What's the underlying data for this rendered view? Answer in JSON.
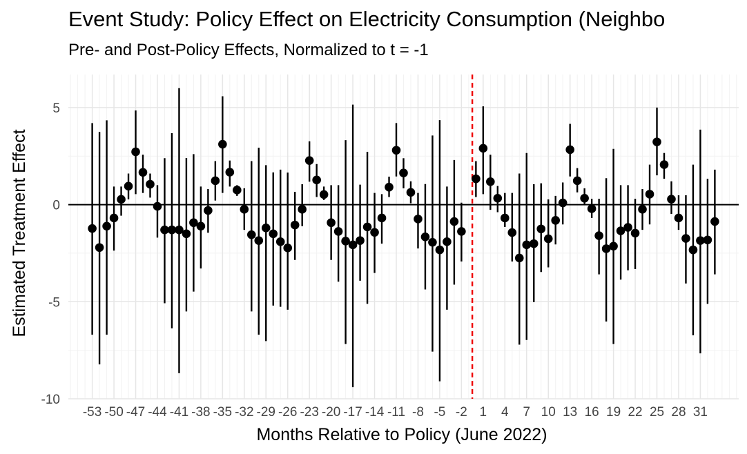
{
  "chart_data": {
    "type": "scatter",
    "title": "Event Study: Policy Effect on Electricity Consumption (Neighbo",
    "subtitle": "Pre- and Post-Policy Effects, Normalized to t = -1",
    "xlabel": "Months Relative to Policy (June 2022)",
    "ylabel": "Estimated Treatment Effect",
    "xlim": [
      -56.3,
      36.3
    ],
    "ylim": [
      -10,
      6.7
    ],
    "yticks": [
      -10,
      -5,
      0,
      5
    ],
    "xticks": [
      -53,
      -50,
      -47,
      -44,
      -41,
      -38,
      -35,
      -32,
      -29,
      -26,
      -23,
      -20,
      -17,
      -14,
      -11,
      -8,
      -5,
      -2,
      1,
      4,
      7,
      10,
      13,
      16,
      19,
      22,
      25,
      28,
      31
    ],
    "reference_line": {
      "y": 0,
      "color": "#000000"
    },
    "policy_line": {
      "x": -0.5,
      "color": "#ee0000",
      "style": "dashed"
    },
    "grid": true,
    "legend": "none",
    "point_color": "#000000",
    "series": [
      {
        "x": [
          -53,
          -52,
          -51,
          -50,
          -49,
          -48,
          -47,
          -46,
          -45,
          -44,
          -43,
          -42,
          -41,
          -40,
          -39,
          -38,
          -37,
          -36,
          -35,
          -34,
          -33,
          -32,
          -31,
          -30,
          -29,
          -28,
          -27,
          -26,
          -25,
          -24,
          -23,
          -22,
          -21,
          -20,
          -19,
          -18,
          -17,
          -16,
          -15,
          -14,
          -13,
          -12,
          -11,
          -10,
          -9,
          -8,
          -7,
          -6,
          -5,
          -4,
          -3,
          -2,
          0,
          1,
          2,
          3,
          4,
          5,
          6,
          7,
          8,
          9,
          10,
          11,
          12,
          13,
          14,
          15,
          16,
          17,
          18,
          19,
          20,
          21,
          22,
          23,
          24,
          25,
          26,
          27,
          28,
          29,
          30,
          31,
          32,
          33
        ],
        "y": [
          -1.23,
          -2.21,
          -1.11,
          -0.69,
          0.27,
          0.95,
          2.72,
          1.66,
          1.05,
          -0.09,
          -1.3,
          -1.3,
          -1.3,
          -1.5,
          -0.93,
          -1.11,
          -0.3,
          1.23,
          3.11,
          1.67,
          0.75,
          -0.24,
          -1.55,
          -1.85,
          -1.2,
          -1.5,
          -1.91,
          -2.23,
          -1.05,
          -0.24,
          2.27,
          1.27,
          0.52,
          -0.93,
          -1.38,
          -1.88,
          -2.07,
          -1.85,
          -1.15,
          -1.43,
          -0.69,
          0.9,
          2.8,
          1.63,
          0.63,
          -0.74,
          -1.66,
          -1.94,
          -2.33,
          -1.91,
          -0.87,
          -1.38,
          1.33,
          2.9,
          1.18,
          0.33,
          -0.69,
          -1.44,
          -2.75,
          -2.07,
          -2.01,
          -1.25,
          -1.76,
          -0.81,
          0.09,
          2.83,
          1.23,
          0.33,
          -0.21,
          -1.6,
          -2.27,
          -2.14,
          -1.35,
          -1.17,
          -1.47,
          -0.24,
          0.54,
          3.23,
          2.06,
          0.28,
          -0.69,
          -1.74,
          -2.33,
          -1.85,
          -1.82,
          -0.87
        ],
        "lower": [
          -6.7,
          -8.23,
          -6.7,
          -2.37,
          -0.57,
          0.27,
          0.54,
          0.6,
          0.36,
          -1.7,
          -5.08,
          -6.37,
          -8.68,
          -5.5,
          -4.48,
          -3.29,
          -1.45,
          0.21,
          0.6,
          0.93,
          0.45,
          -1.3,
          -5.5,
          -6.7,
          -7.03,
          -5.2,
          -5.26,
          -5.41,
          -2.85,
          -1.11,
          1.18,
          0.39,
          0.24,
          -2.85,
          -3.97,
          -7.18,
          -9.4,
          -3.92,
          -5.11,
          -3.52,
          -2.01,
          0.39,
          1.45,
          0.84,
          0.07,
          -2.26,
          -4.37,
          -7.57,
          -9.1,
          -5.41,
          -4.12,
          -2.93,
          0.39,
          0.54,
          -0.27,
          -0.39,
          -1.15,
          -2.93,
          -7.21,
          -6.97,
          -5.02,
          -3.47,
          -3.23,
          -2.05,
          -1.02,
          1.45,
          0.63,
          0.01,
          -0.69,
          -3.59,
          -6.02,
          -7.18,
          -3.86,
          -3.38,
          -3.32,
          -1.3,
          -1.02,
          1.51,
          1.33,
          -0.48,
          -1.3,
          -4.06,
          -6.73,
          -7.66,
          -5.11,
          -3.59
        ],
        "upper": [
          4.2,
          3.74,
          4.34,
          0.93,
          0.93,
          1.6,
          4.85,
          2.57,
          1.6,
          1.0,
          2.39,
          3.68,
          6.0,
          2.4,
          2.6,
          0.93,
          0.8,
          2.24,
          5.58,
          2.27,
          1.0,
          0.84,
          2.24,
          2.93,
          2.03,
          1.66,
          1.8,
          1.65,
          0.66,
          1.05,
          3.26,
          2.09,
          0.93,
          1.0,
          1.0,
          3.32,
          5.15,
          1.03,
          2.72,
          0.6,
          0.54,
          1.44,
          4.2,
          2.39,
          1.2,
          0.6,
          1.06,
          3.56,
          4.35,
          0.93,
          2.3,
          0.1,
          2.24,
          5.06,
          2.57,
          0.96,
          0.6,
          0.6,
          1.6,
          2.66,
          1.05,
          1.1,
          0.27,
          0.45,
          1.14,
          4.16,
          1.88,
          0.84,
          0.3,
          0.3,
          1.36,
          2.87,
          1.0,
          1.0,
          0.3,
          0.8,
          2.06,
          5.0,
          2.66,
          1.2,
          0.48,
          0.48,
          2.06,
          3.86,
          1.33,
          1.8
        ]
      }
    ]
  }
}
